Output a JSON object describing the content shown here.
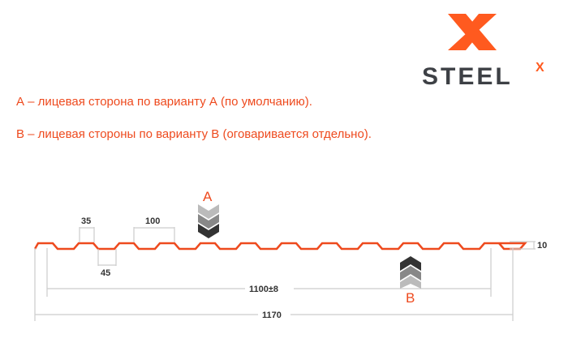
{
  "logo": {
    "text": "STEEL",
    "superscript": "X",
    "accent": "#ff5a1f",
    "dark": "#3d4045"
  },
  "notes": [
    "А – лицевая сторона по варианту А (по умолчанию).",
    "В – лицевая стороны по варианту В (оговаривается отдельно)."
  ],
  "diagram": {
    "profile_color": "#ee4a1e",
    "dimensions": {
      "crest": "35",
      "pitch": "100",
      "trough": "45",
      "height": "10",
      "useful_width": "1100±8",
      "full_width": "1170"
    },
    "face_a": "A",
    "face_b": "B"
  }
}
